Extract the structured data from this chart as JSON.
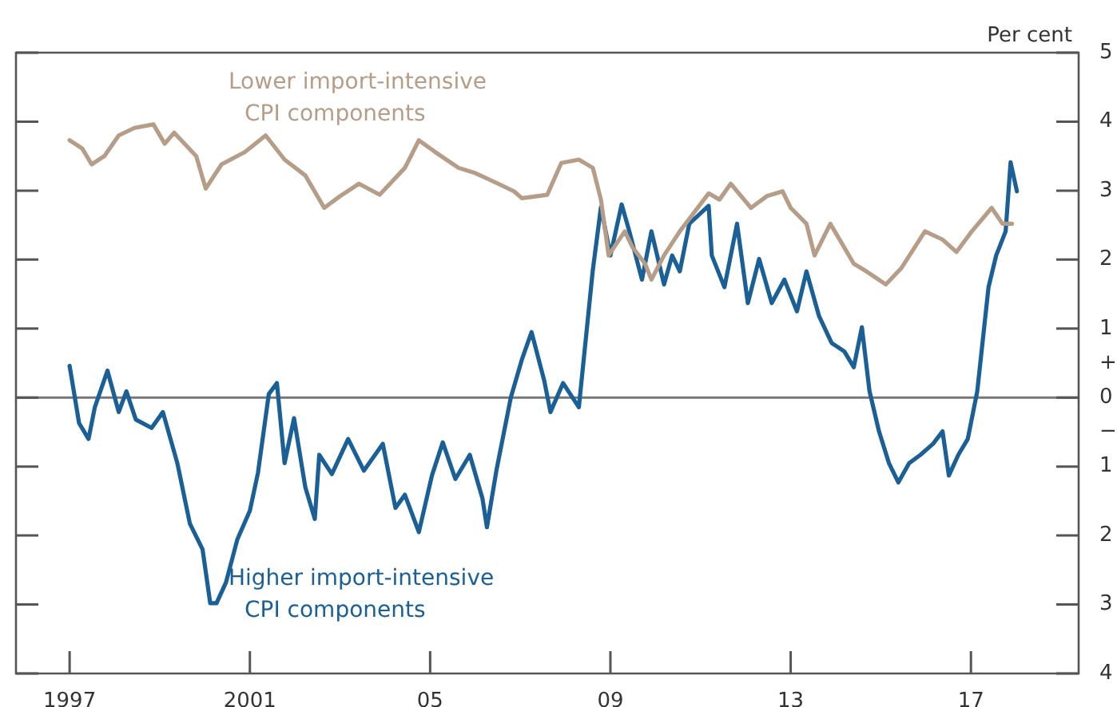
{
  "chart_data": {
    "type": "line",
    "ylabel": "Per cent",
    "xlim": [
      1995.81,
      2019.39
    ],
    "ylim": [
      -4,
      5
    ],
    "xticks": [
      {
        "value": 1997,
        "label": "1997"
      },
      {
        "value": 2001,
        "label": "2001"
      },
      {
        "value": 2005,
        "label": "05"
      },
      {
        "value": 2009,
        "label": "09"
      },
      {
        "value": 2013,
        "label": "13"
      },
      {
        "value": 2017,
        "label": "17"
      }
    ],
    "yticks": [
      {
        "value": -4,
        "label": "4"
      },
      {
        "value": -3,
        "label": "3"
      },
      {
        "value": -2,
        "label": "2"
      },
      {
        "value": -1,
        "label": "1"
      },
      {
        "value": -0.5,
        "label": "−"
      },
      0,
      {
        "value": 0.5,
        "label": "+"
      },
      1,
      2,
      3,
      4,
      5
    ],
    "grid": false,
    "legend": false,
    "marker": "none",
    "line_style": "solid",
    "ref_lines": [
      {
        "axis": "y",
        "value": 0,
        "color": "#777777"
      }
    ],
    "series": [
      {
        "name": "Lower import-intensive CPI components",
        "color": "#b59d88",
        "x": [
          1997.0,
          1997.28,
          1997.49,
          1997.77,
          1998.09,
          1998.44,
          1998.86,
          1999.11,
          1999.32,
          1999.81,
          2000.02,
          2000.37,
          2000.89,
          2001.35,
          2001.77,
          2002.23,
          2002.65,
          2003.0,
          2003.42,
          2003.88,
          2004.44,
          2004.75,
          2005.11,
          2005.63,
          2005.98,
          2006.51,
          2006.86,
          2007.04,
          2007.6,
          2007.91,
          2008.3,
          2008.61,
          2008.79,
          2008.96,
          2009.32,
          2009.49,
          2009.77,
          2009.91,
          2010.19,
          2010.54,
          2011.18,
          2011.42,
          2011.67,
          2012.12,
          2012.47,
          2012.82,
          2013.0,
          2013.35,
          2013.53,
          2013.88,
          2014.4,
          2014.68,
          2015.11,
          2015.46,
          2015.98,
          2016.37,
          2016.68,
          2017.02,
          2017.46,
          2017.7,
          2017.91
        ],
        "values": [
          3.73,
          3.61,
          3.38,
          3.5,
          3.8,
          3.91,
          3.96,
          3.68,
          3.84,
          3.5,
          3.03,
          3.38,
          3.56,
          3.8,
          3.45,
          3.22,
          2.75,
          2.92,
          3.1,
          2.94,
          3.33,
          3.73,
          3.56,
          3.33,
          3.26,
          3.1,
          2.99,
          2.89,
          2.94,
          3.4,
          3.45,
          3.33,
          2.87,
          2.06,
          2.41,
          2.18,
          1.94,
          1.71,
          2.06,
          2.41,
          2.96,
          2.87,
          3.1,
          2.75,
          2.92,
          2.99,
          2.75,
          2.52,
          2.06,
          2.52,
          1.94,
          1.83,
          1.64,
          1.88,
          2.41,
          2.29,
          2.11,
          2.41,
          2.75,
          2.52,
          2.52
        ]
      },
      {
        "name": "Higher import-intensive CPI components",
        "color": "#1a5f96",
        "x": [
          1997.0,
          1997.21,
          1997.42,
          1997.56,
          1997.84,
          1998.09,
          1998.26,
          1998.47,
          1998.82,
          1999.07,
          1999.39,
          1999.67,
          1999.95,
          2000.12,
          2000.26,
          2000.47,
          2000.72,
          2001.0,
          2001.18,
          2001.42,
          2001.6,
          2001.77,
          2001.98,
          2002.23,
          2002.44,
          2002.54,
          2002.82,
          2003.18,
          2003.53,
          2003.95,
          2004.23,
          2004.44,
          2004.75,
          2005.04,
          2005.28,
          2005.56,
          2005.88,
          2006.16,
          2006.26,
          2006.47,
          2006.79,
          2007.04,
          2007.25,
          2007.53,
          2007.67,
          2007.95,
          2008.3,
          2008.61,
          2008.79,
          2009.0,
          2009.25,
          2009.42,
          2009.7,
          2009.91,
          2010.19,
          2010.37,
          2010.54,
          2010.75,
          2011.18,
          2011.25,
          2011.53,
          2011.81,
          2012.05,
          2012.3,
          2012.58,
          2012.86,
          2013.14,
          2013.35,
          2013.63,
          2013.91,
          2014.19,
          2014.4,
          2014.58,
          2014.75,
          2014.96,
          2015.18,
          2015.39,
          2015.63,
          2015.88,
          2016.16,
          2016.37,
          2016.51,
          2016.72,
          2016.93,
          2017.14,
          2017.39,
          2017.56,
          2017.77,
          2017.88,
          2018.02
        ],
        "values": [
          0.46,
          -0.37,
          -0.6,
          -0.14,
          0.39,
          -0.21,
          0.09,
          -0.32,
          -0.44,
          -0.21,
          -0.95,
          -1.83,
          -2.2,
          -2.98,
          -2.98,
          -2.68,
          -2.06,
          -1.64,
          -1.09,
          0.05,
          0.21,
          -0.95,
          -0.3,
          -1.3,
          -1.76,
          -0.83,
          -1.11,
          -0.6,
          -1.06,
          -0.67,
          -1.6,
          -1.41,
          -1.95,
          -1.13,
          -0.65,
          -1.18,
          -0.83,
          -1.46,
          -1.88,
          -1.06,
          0.0,
          0.56,
          0.95,
          0.25,
          -0.21,
          0.21,
          -0.14,
          1.85,
          2.76,
          2.06,
          2.8,
          2.41,
          1.71,
          2.41,
          1.64,
          2.06,
          1.83,
          2.52,
          2.78,
          2.06,
          1.6,
          2.52,
          1.37,
          2.01,
          1.37,
          1.71,
          1.25,
          1.83,
          1.18,
          0.79,
          0.67,
          0.44,
          1.02,
          0.09,
          -0.49,
          -0.95,
          -1.23,
          -0.95,
          -0.83,
          -0.67,
          -0.49,
          -1.13,
          -0.83,
          -0.6,
          0.09,
          1.6,
          2.06,
          2.41,
          3.41,
          2.99
        ]
      }
    ]
  }
}
